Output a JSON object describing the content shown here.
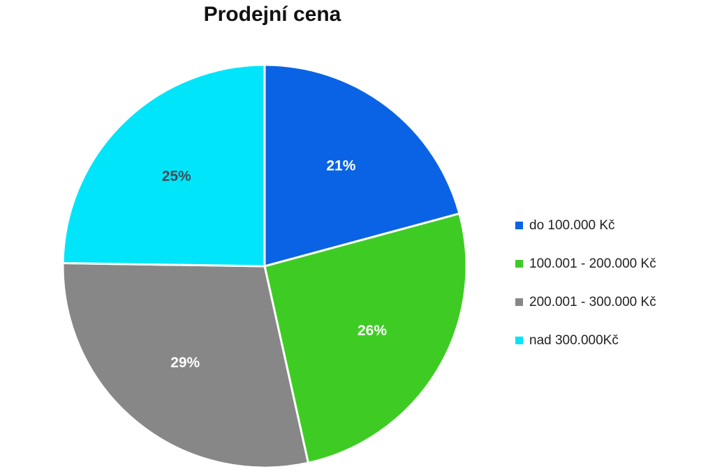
{
  "chart_data": {
    "type": "pie",
    "title": "Prodejní cena",
    "categories": [
      "do 100.000 Kč",
      "100.001 - 200.000 Kč",
      "200.001 - 300.000 Kč",
      "nad 300.000Kč"
    ],
    "values": [
      21,
      26,
      29,
      25
    ],
    "data_labels": [
      "21%",
      "26%",
      "29%",
      "25%"
    ],
    "colors": [
      "#0a63e4",
      "#3ecc24",
      "#878787",
      "#00e5f9"
    ],
    "label_colors": [
      "#ffffff",
      "#ffffff",
      "#ffffff",
      "#3f4a55"
    ],
    "legend_position": "right"
  }
}
